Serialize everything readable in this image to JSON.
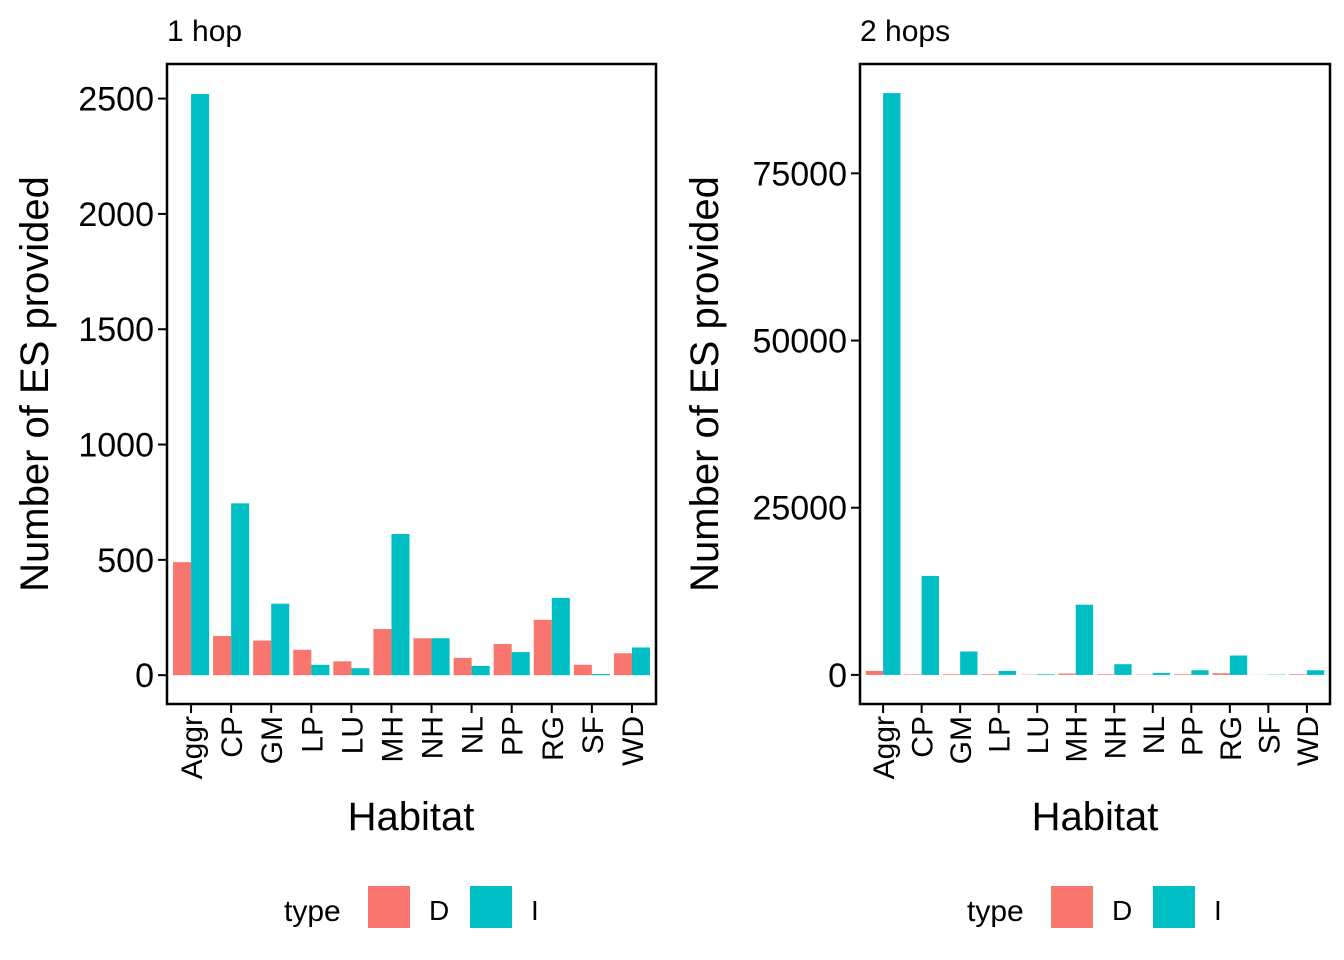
{
  "chart_data": [
    {
      "type": "bar",
      "title": "1 hop",
      "xlabel": "Habitat",
      "ylabel": "Number of ES provided",
      "categories": [
        "Aggr",
        "CP",
        "GM",
        "LP",
        "LU",
        "MH",
        "NH",
        "NL",
        "PP",
        "RG",
        "SF",
        "WD"
      ],
      "series": [
        {
          "name": "D",
          "color": "#F8766D",
          "values": [
            490,
            170,
            150,
            110,
            60,
            200,
            160,
            75,
            135,
            240,
            45,
            95
          ]
        },
        {
          "name": "I",
          "color": "#00BFC4",
          "values": [
            2520,
            745,
            310,
            45,
            30,
            612,
            160,
            40,
            100,
            335,
            5,
            120
          ]
        }
      ],
      "yticks": [
        0,
        500,
        1000,
        1500,
        2000,
        2500
      ],
      "ylim": [
        -125,
        2650
      ],
      "grid": false,
      "legend": {
        "title": "type",
        "position": "bottom"
      }
    },
    {
      "type": "bar",
      "title": "2 hops",
      "xlabel": "Habitat",
      "ylabel": "Number of ES provided",
      "categories": [
        "Aggr",
        "CP",
        "GM",
        "LP",
        "LU",
        "MH",
        "NH",
        "NL",
        "PP",
        "RG",
        "SF",
        "WD"
      ],
      "series": [
        {
          "name": "D",
          "color": "#F8766D",
          "values": [
            600,
            80,
            100,
            100,
            40,
            200,
            100,
            50,
            100,
            250,
            20,
            100
          ]
        },
        {
          "name": "I",
          "color": "#00BFC4",
          "values": [
            87000,
            14800,
            3500,
            600,
            100,
            10500,
            1600,
            300,
            700,
            2900,
            50,
            700
          ]
        }
      ],
      "yticks": [
        0,
        25000,
        50000,
        75000
      ],
      "ylim": [
        -4350,
        91350
      ],
      "grid": false,
      "legend": {
        "title": "type",
        "position": "bottom"
      }
    }
  ]
}
